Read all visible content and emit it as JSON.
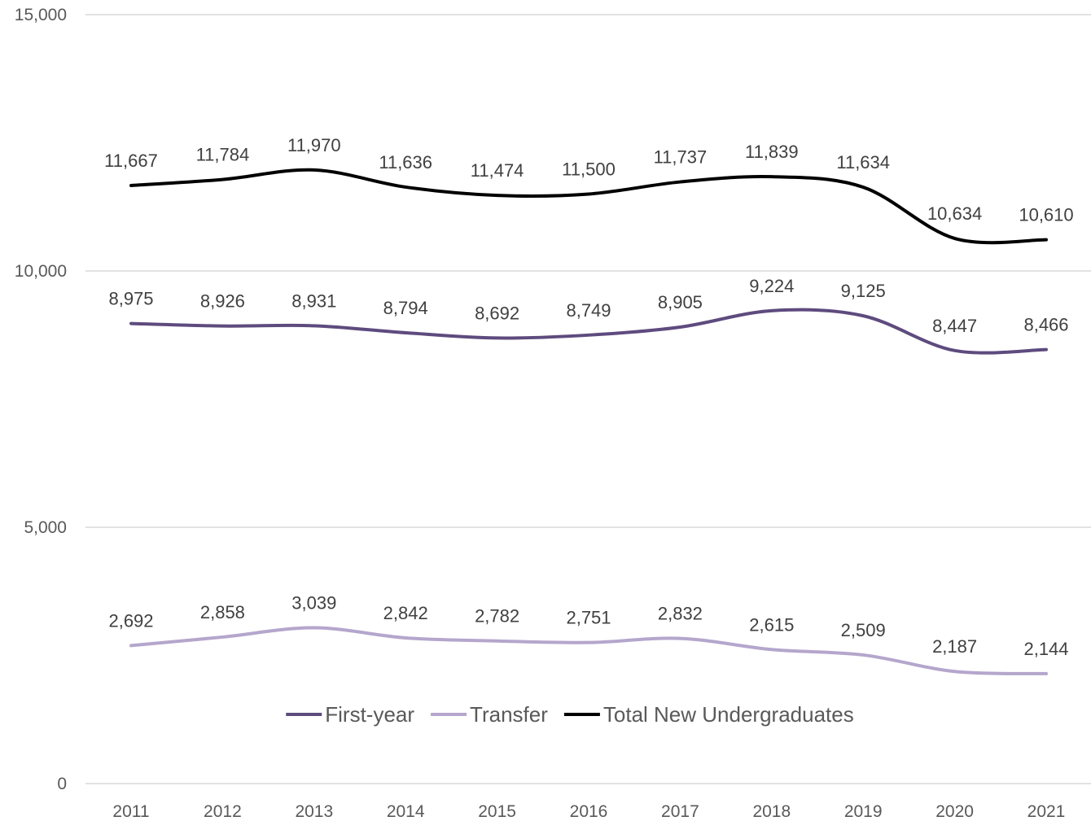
{
  "chart_data": {
    "type": "line",
    "title": "",
    "xlabel": "",
    "ylabel": "",
    "x": [
      "2011",
      "2012",
      "2013",
      "2014",
      "2015",
      "2016",
      "2017",
      "2018",
      "2019",
      "2020",
      "2021"
    ],
    "ylim": [
      0,
      15000
    ],
    "yticks": [
      0,
      5000,
      10000,
      15000
    ],
    "ytick_labels": [
      "0",
      "5,000",
      "10,000",
      "15,000"
    ],
    "grid": true,
    "legend_position": "bottom",
    "smooth": true,
    "series": [
      {
        "name": "First-year",
        "color": "#5e4b7e",
        "values": [
          8975,
          8926,
          8931,
          8794,
          8692,
          8749,
          8905,
          9224,
          9125,
          8447,
          8466
        ],
        "labels": [
          "8,975",
          "8,926",
          "8,931",
          "8,794",
          "8,692",
          "8,749",
          "8,905",
          "9,224",
          "9,125",
          "8,447",
          "8,466"
        ]
      },
      {
        "name": "Transfer",
        "color": "#b4a6cc",
        "values": [
          2692,
          2858,
          3039,
          2842,
          2782,
          2751,
          2832,
          2615,
          2509,
          2187,
          2144
        ],
        "labels": [
          "2,692",
          "2,858",
          "3,039",
          "2,842",
          "2,782",
          "2,751",
          "2,832",
          "2,615",
          "2,509",
          "2,187",
          "2,144"
        ]
      },
      {
        "name": "Total New Undergraduates",
        "color": "#000000",
        "values": [
          11667,
          11784,
          11970,
          11636,
          11474,
          11500,
          11737,
          11839,
          11634,
          10634,
          10610
        ],
        "labels": [
          "11,667",
          "11,784",
          "11,970",
          "11,636",
          "11,474",
          "11,500",
          "11,737",
          "11,839",
          "11,634",
          "10,634",
          "10,610"
        ]
      }
    ]
  }
}
